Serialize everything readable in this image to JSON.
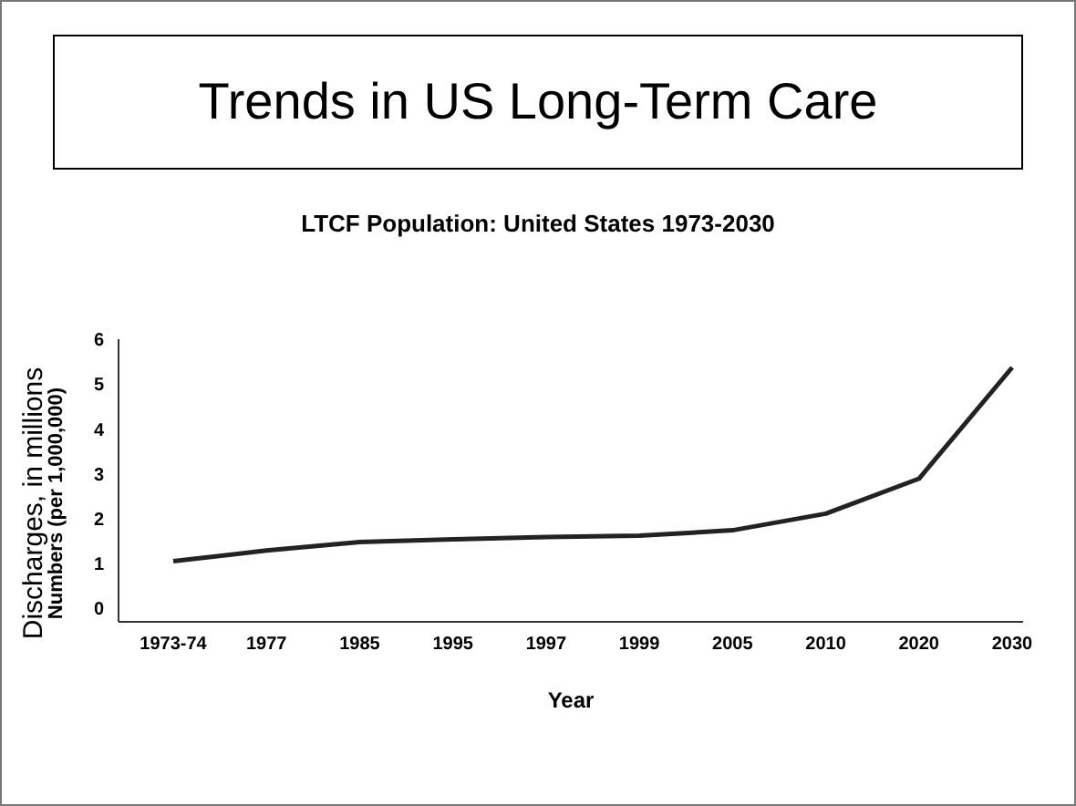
{
  "chart_data": {
    "type": "line",
    "title": "Trends in US Long-Term Care",
    "subtitle": "LTCF Population: United States 1973-2030",
    "xlabel": "Year",
    "ylabel": "Discharges, in millions\nNumbers (per 1,000,000)",
    "categories": [
      "1973-74",
      "1977",
      "1985",
      "1995",
      "1997",
      "1999",
      "2005",
      "2010",
      "2020",
      "2030"
    ],
    "series": [
      {
        "color": "#222222",
        "values": [
          1.05,
          1.29,
          1.48,
          1.54,
          1.59,
          1.62,
          1.74,
          2.11,
          2.89,
          5.37
        ]
      }
    ],
    "ylim": [
      -0.3,
      6
    ],
    "yticks": [
      0,
      1,
      2,
      3,
      4,
      5,
      6
    ],
    "grid": false,
    "legend": false,
    "marker": "none",
    "line_style": "solid"
  }
}
